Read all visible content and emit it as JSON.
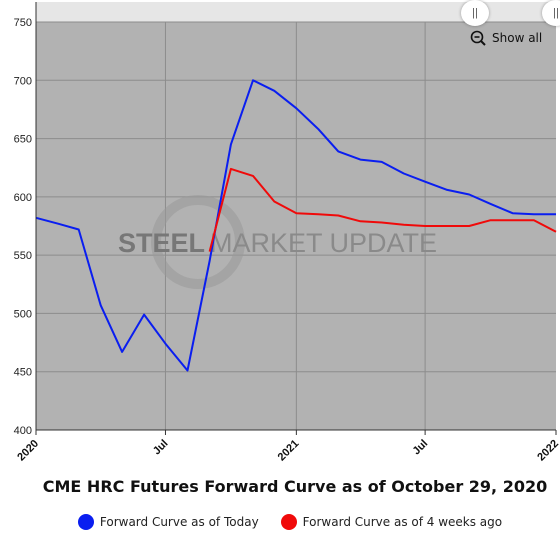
{
  "chart_data": {
    "type": "line",
    "title": "CME HRC Futures Forward Curve as of October 29, 2020",
    "xlabel": "",
    "ylabel": "",
    "ylim": [
      400,
      750
    ],
    "y_ticks": [
      400,
      450,
      500,
      550,
      600,
      650,
      700,
      750
    ],
    "x_range": [
      "2020-01-01",
      "2022-01-01"
    ],
    "x_ticks": [
      {
        "date": "2020-01-01",
        "label": "2020"
      },
      {
        "date": "2020-07-01",
        "label": "Jul"
      },
      {
        "date": "2021-01-01",
        "label": "2021"
      },
      {
        "date": "2021-07-01",
        "label": "Jul"
      },
      {
        "date": "2022-01-01",
        "label": "2022"
      }
    ],
    "grid": true,
    "legend_position": "bottom",
    "series": [
      {
        "name": "Forward Curve as of Today",
        "color": "#0a1ef0",
        "points": [
          [
            "2020-01-01",
            582
          ],
          [
            "2020-02-01",
            577
          ],
          [
            "2020-03-01",
            572
          ],
          [
            "2020-04-01",
            507
          ],
          [
            "2020-05-01",
            467
          ],
          [
            "2020-06-01",
            499
          ],
          [
            "2020-07-01",
            474
          ],
          [
            "2020-08-01",
            451
          ],
          [
            "2020-09-01",
            545
          ],
          [
            "2020-10-01",
            645
          ],
          [
            "2020-11-01",
            700
          ],
          [
            "2020-12-01",
            691
          ],
          [
            "2021-01-01",
            676
          ],
          [
            "2021-02-01",
            658
          ],
          [
            "2021-03-01",
            639
          ],
          [
            "2021-04-01",
            632
          ],
          [
            "2021-05-01",
            630
          ],
          [
            "2021-06-01",
            620
          ],
          [
            "2021-07-01",
            613
          ],
          [
            "2021-08-01",
            606
          ],
          [
            "2021-09-01",
            602
          ],
          [
            "2021-10-01",
            594
          ],
          [
            "2021-11-01",
            586
          ],
          [
            "2021-12-01",
            585
          ],
          [
            "2022-01-01",
            585
          ]
        ]
      },
      {
        "name": "Forward Curve as of 4 weeks ago",
        "color": "#f00a0a",
        "points": [
          [
            "2020-09-01",
            553
          ],
          [
            "2020-10-01",
            624
          ],
          [
            "2020-11-01",
            618
          ],
          [
            "2020-12-01",
            596
          ],
          [
            "2021-01-01",
            586
          ],
          [
            "2021-02-01",
            585
          ],
          [
            "2021-03-01",
            584
          ],
          [
            "2021-04-01",
            579
          ],
          [
            "2021-05-01",
            578
          ],
          [
            "2021-06-01",
            576
          ],
          [
            "2021-07-01",
            575
          ],
          [
            "2021-08-01",
            575
          ],
          [
            "2021-09-01",
            575
          ],
          [
            "2021-10-01",
            580
          ],
          [
            "2021-11-01",
            580
          ],
          [
            "2021-12-01",
            580
          ],
          [
            "2022-01-01",
            570
          ]
        ]
      }
    ]
  },
  "watermark": {
    "bold": "STEEL",
    "light": "MARKET UPDATE"
  },
  "controls": {
    "show_all_label": "Show all"
  },
  "colors": {
    "plot_bg": "#b2b2b2",
    "grid": "#8c8c8c",
    "navigator_bg": "#e6e6e6"
  }
}
